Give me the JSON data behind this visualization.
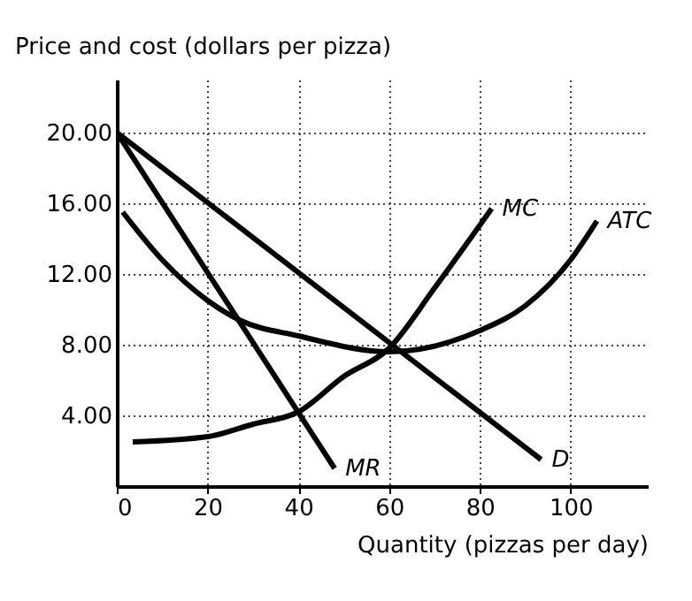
{
  "chart_data": {
    "type": "line",
    "xlabel": "Quantity (pizzas per day)",
    "ylabel": "Price and cost (dollars per pizza)",
    "xlim": [
      0,
      117
    ],
    "ylim": [
      0,
      23
    ],
    "xticks": [
      0,
      20,
      40,
      60,
      80,
      100
    ],
    "yticks": [
      {
        "value": 4,
        "label": "4.00"
      },
      {
        "value": 8,
        "label": "8.00"
      },
      {
        "value": 12,
        "label": "12.00"
      },
      {
        "value": 16,
        "label": "16.00"
      },
      {
        "value": 20,
        "label": "20.00"
      }
    ],
    "grid": true,
    "legend": false,
    "marker": "none",
    "line_style": "solid",
    "series": [
      {
        "name": "D",
        "color": "#000000",
        "x": [
          0,
          93.5
        ],
        "values": [
          20,
          1.5
        ]
      },
      {
        "name": "MR",
        "color": "#000000",
        "x": [
          0,
          48
        ],
        "values": [
          20,
          1
        ]
      },
      {
        "name": "MC",
        "color": "#000000",
        "x": [
          3.5,
          20,
          30,
          40,
          50,
          60,
          70,
          82.6
        ],
        "values": [
          2.5,
          2.8,
          3.5,
          4.2,
          6.2,
          7.8,
          11.2,
          15.7
        ]
      },
      {
        "name": "ATC",
        "color": "#000000",
        "x": [
          1.3,
          10,
          20,
          27,
          40,
          60,
          80,
          90,
          100,
          105.8
        ],
        "values": [
          15.5,
          12.8,
          10.5,
          9.4,
          8.5,
          7.6,
          8.8,
          10.2,
          12.8,
          15
        ]
      }
    ]
  }
}
